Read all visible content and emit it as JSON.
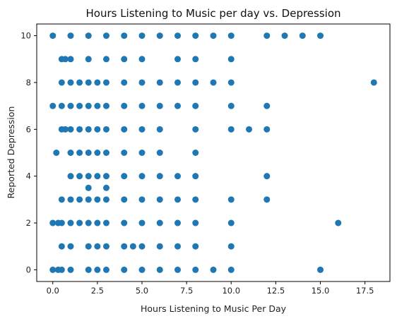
{
  "chart_data": {
    "type": "scatter",
    "title": "Hours Listening to Music per day vs. Depression",
    "xlabel": "Hours Listening to Music Per Day",
    "ylabel": "Reported Depression",
    "xlim": [
      -0.9,
      18.9
    ],
    "ylim": [
      -0.5,
      10.5
    ],
    "x_ticks": [
      0.0,
      2.5,
      5.0,
      7.5,
      10.0,
      12.5,
      15.0,
      17.5
    ],
    "x_tick_labels": [
      "0.0",
      "2.5",
      "5.0",
      "7.5",
      "10.0",
      "12.5",
      "15.0",
      "17.5"
    ],
    "y_ticks": [
      0,
      2,
      4,
      6,
      8,
      10
    ],
    "y_tick_labels": [
      "0",
      "2",
      "4",
      "6",
      "8",
      "10"
    ],
    "grid": false,
    "marker_color": "#1f77b4",
    "points": [
      [
        0,
        10
      ],
      [
        1,
        10
      ],
      [
        2,
        10
      ],
      [
        3,
        10
      ],
      [
        4,
        10
      ],
      [
        5,
        10
      ],
      [
        6,
        10
      ],
      [
        7,
        10
      ],
      [
        8,
        10
      ],
      [
        9,
        10
      ],
      [
        10,
        10
      ],
      [
        12,
        10
      ],
      [
        13,
        10
      ],
      [
        14,
        10
      ],
      [
        15,
        10
      ],
      [
        0.5,
        9
      ],
      [
        0.7,
        9
      ],
      [
        1,
        9
      ],
      [
        2,
        9
      ],
      [
        3,
        9
      ],
      [
        4,
        9
      ],
      [
        5,
        9
      ],
      [
        7,
        9
      ],
      [
        8,
        9
      ],
      [
        10,
        9
      ],
      [
        0.5,
        8
      ],
      [
        1,
        8
      ],
      [
        1.5,
        8
      ],
      [
        2,
        8
      ],
      [
        2.5,
        8
      ],
      [
        3,
        8
      ],
      [
        4,
        8
      ],
      [
        5,
        8
      ],
      [
        6,
        8
      ],
      [
        7,
        8
      ],
      [
        8,
        8
      ],
      [
        9,
        8
      ],
      [
        10,
        8
      ],
      [
        18,
        8
      ],
      [
        0,
        7
      ],
      [
        0.5,
        7
      ],
      [
        1,
        7
      ],
      [
        1.5,
        7
      ],
      [
        2,
        7
      ],
      [
        2.5,
        7
      ],
      [
        3,
        7
      ],
      [
        4,
        7
      ],
      [
        5,
        7
      ],
      [
        6,
        7
      ],
      [
        7,
        7
      ],
      [
        8,
        7
      ],
      [
        10,
        7
      ],
      [
        12,
        7
      ],
      [
        0.5,
        6
      ],
      [
        0.7,
        6
      ],
      [
        1,
        6
      ],
      [
        1.5,
        6
      ],
      [
        2,
        6
      ],
      [
        2.5,
        6
      ],
      [
        3,
        6
      ],
      [
        4,
        6
      ],
      [
        5,
        6
      ],
      [
        6,
        6
      ],
      [
        8,
        6
      ],
      [
        10,
        6
      ],
      [
        11,
        6
      ],
      [
        12,
        6
      ],
      [
        0.2,
        5
      ],
      [
        1,
        5
      ],
      [
        1.5,
        5
      ],
      [
        2,
        5
      ],
      [
        2.5,
        5
      ],
      [
        3,
        5
      ],
      [
        4,
        5
      ],
      [
        5,
        5
      ],
      [
        6,
        5
      ],
      [
        8,
        5
      ],
      [
        1,
        4
      ],
      [
        1.5,
        4
      ],
      [
        2,
        4
      ],
      [
        2.5,
        4
      ],
      [
        3,
        4
      ],
      [
        4,
        4
      ],
      [
        5,
        4
      ],
      [
        6,
        4
      ],
      [
        7,
        4
      ],
      [
        8,
        4
      ],
      [
        12,
        4
      ],
      [
        2,
        3.5
      ],
      [
        3,
        3.5
      ],
      [
        0.5,
        3
      ],
      [
        1,
        3
      ],
      [
        1.5,
        3
      ],
      [
        2,
        3
      ],
      [
        2.5,
        3
      ],
      [
        3,
        3
      ],
      [
        4,
        3
      ],
      [
        5,
        3
      ],
      [
        6,
        3
      ],
      [
        7,
        3
      ],
      [
        8,
        3
      ],
      [
        10,
        3
      ],
      [
        12,
        3
      ],
      [
        0,
        2
      ],
      [
        0.3,
        2
      ],
      [
        0.5,
        2
      ],
      [
        1,
        2
      ],
      [
        1.5,
        2
      ],
      [
        2,
        2
      ],
      [
        2.5,
        2
      ],
      [
        3,
        2
      ],
      [
        4,
        2
      ],
      [
        5,
        2
      ],
      [
        6,
        2
      ],
      [
        7,
        2
      ],
      [
        8,
        2
      ],
      [
        10,
        2
      ],
      [
        16,
        2
      ],
      [
        0.5,
        1
      ],
      [
        1,
        1
      ],
      [
        2,
        1
      ],
      [
        2.5,
        1
      ],
      [
        3,
        1
      ],
      [
        4,
        1
      ],
      [
        4.5,
        1
      ],
      [
        5,
        1
      ],
      [
        6,
        1
      ],
      [
        7,
        1
      ],
      [
        8,
        1
      ],
      [
        10,
        1
      ],
      [
        0,
        0
      ],
      [
        0.3,
        0
      ],
      [
        0.5,
        0
      ],
      [
        1,
        0
      ],
      [
        2,
        0
      ],
      [
        2.5,
        0
      ],
      [
        3,
        0
      ],
      [
        4,
        0
      ],
      [
        5,
        0
      ],
      [
        6,
        0
      ],
      [
        7,
        0
      ],
      [
        8,
        0
      ],
      [
        9,
        0
      ],
      [
        10,
        0
      ],
      [
        15,
        0
      ]
    ]
  }
}
